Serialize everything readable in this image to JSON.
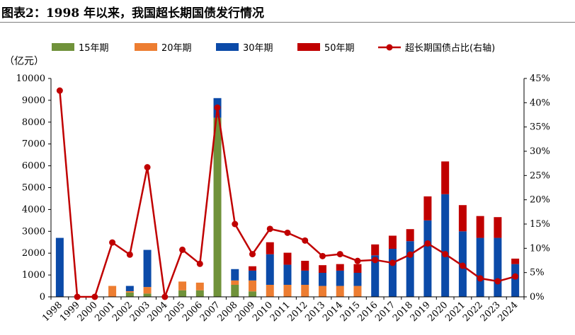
{
  "figure": {
    "title": "图表2：1998 年以来，我国超长期国债发行情况"
  },
  "chart_data": {
    "type": "bar",
    "stacked": true,
    "y_unit": "（亿元）",
    "categories": [
      "1998",
      "1999",
      "2000",
      "2001",
      "2002",
      "2003",
      "2004",
      "2005",
      "2006",
      "2007",
      "2008",
      "2009",
      "2010",
      "2011",
      "2012",
      "2013",
      "2014",
      "2015",
      "2016",
      "2017",
      "2018",
      "2019",
      "2020",
      "2021",
      "2022",
      "2023",
      "2024"
    ],
    "ylim": [
      0,
      10000
    ],
    "y_ticks": [
      0,
      1000,
      2000,
      3000,
      4000,
      5000,
      6000,
      7000,
      8000,
      9000,
      10000
    ],
    "y2lim": [
      0,
      45
    ],
    "y2_ticks": [
      "0%",
      "5%",
      "10%",
      "15%",
      "20%",
      "25%",
      "30%",
      "35%",
      "40%",
      "45%"
    ],
    "series": [
      {
        "name": "15年期",
        "type": "bar",
        "color": "#70923a",
        "values": [
          0,
          0,
          0,
          0,
          200,
          150,
          0,
          300,
          300,
          8200,
          550,
          250,
          0,
          0,
          0,
          0,
          0,
          0,
          0,
          0,
          0,
          0,
          0,
          0,
          0,
          0,
          0
        ]
      },
      {
        "name": "20年期",
        "type": "bar",
        "color": "#ed7d31",
        "values": [
          0,
          0,
          0,
          500,
          60,
          300,
          0,
          400,
          350,
          0,
          200,
          500,
          550,
          550,
          550,
          500,
          500,
          500,
          0,
          0,
          0,
          0,
          0,
          0,
          0,
          0,
          0
        ]
      },
      {
        "name": "30年期",
        "type": "bar",
        "color": "#0b4aa8",
        "values": [
          2700,
          0,
          0,
          0,
          240,
          1700,
          0,
          0,
          0,
          900,
          520,
          450,
          1400,
          920,
          650,
          600,
          700,
          600,
          1900,
          2200,
          2550,
          3500,
          4700,
          3000,
          2700,
          2700,
          1500
        ]
      },
      {
        "name": "50年期",
        "type": "bar",
        "color": "#c00000",
        "values": [
          0,
          0,
          0,
          0,
          0,
          0,
          0,
          0,
          0,
          0,
          0,
          200,
          550,
          550,
          450,
          350,
          300,
          400,
          500,
          600,
          550,
          1100,
          1500,
          1200,
          1000,
          950,
          250
        ]
      },
      {
        "name": "超长期国债占比(右轴)",
        "type": "line",
        "axis": "right",
        "color": "#c00000",
        "values": [
          42.5,
          0,
          0,
          11.2,
          8.7,
          26.7,
          0,
          9.7,
          6.8,
          39,
          15,
          8.8,
          14,
          13.2,
          11.6,
          8.4,
          8.8,
          7.4,
          7.6,
          7,
          8.7,
          11,
          8.8,
          6.4,
          3.8,
          3.2,
          4.2
        ]
      }
    ]
  }
}
